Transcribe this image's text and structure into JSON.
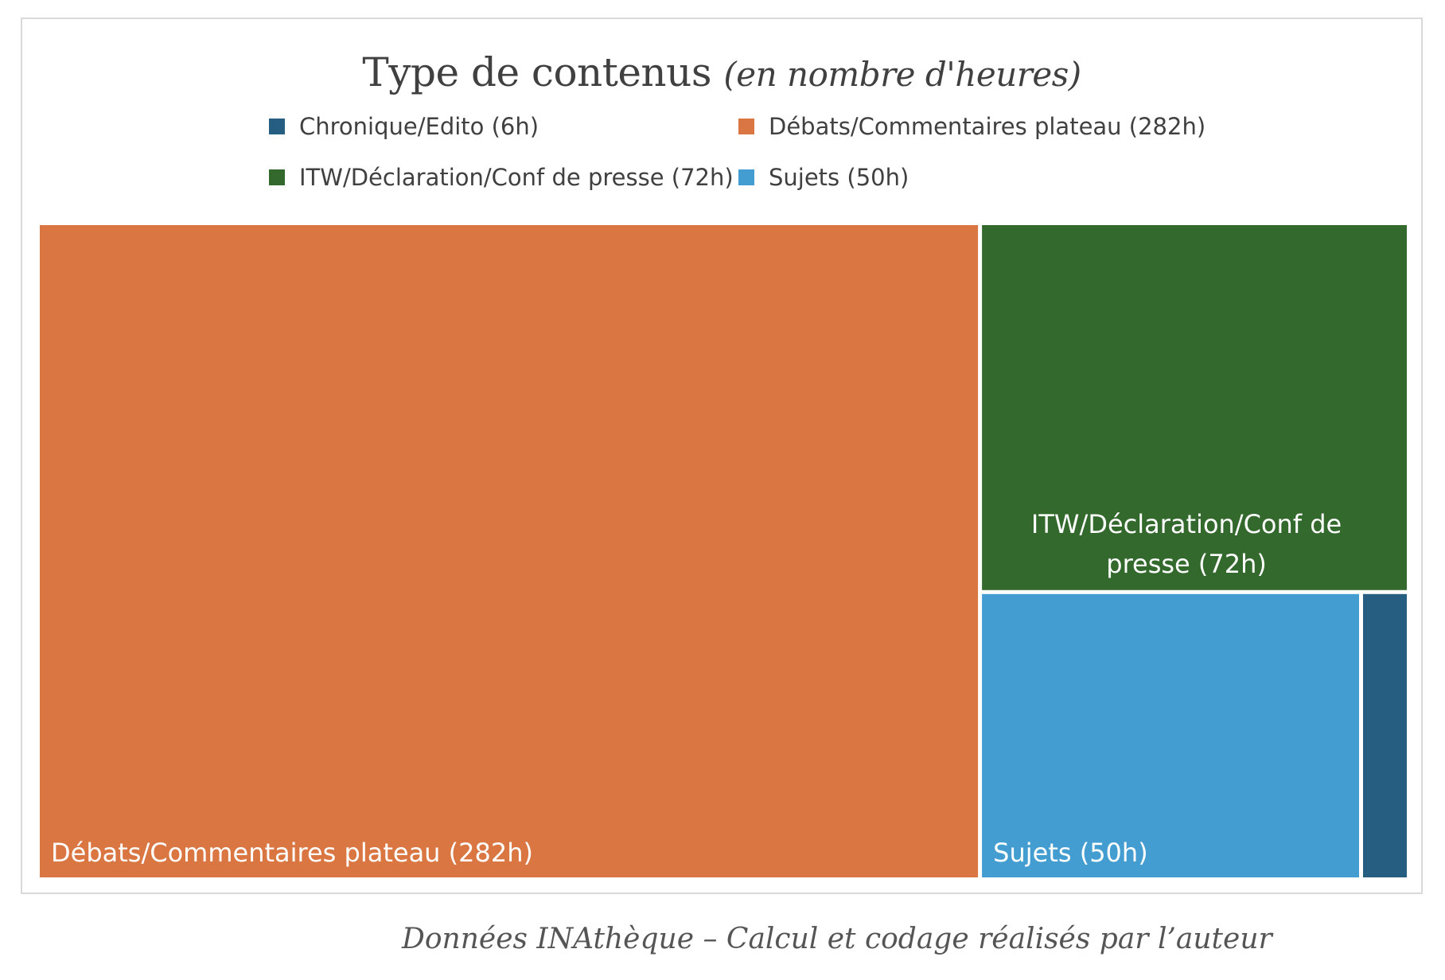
{
  "caption": "Données INAthèque – Calcul et codage réalisés par l’auteur",
  "chart_data": {
    "type": "treemap",
    "title": "Type de contenus",
    "subtitle": "(en nombre d'heures)",
    "legend_position": "top",
    "series": [
      {
        "name": "Chronique/Edito (6h)",
        "value": 6,
        "color": "#255e81",
        "label": ""
      },
      {
        "name": "Débats/Commentaires plateau (282h)",
        "value": 282,
        "color": "#d97642",
        "label": "Débats/Commentaires plateau (282h)"
      },
      {
        "name": "ITW/Déclaration/Conf de presse (72h)",
        "value": 72,
        "color": "#33692d",
        "label": "ITW/Déclaration/Conf de presse (72h)",
        "label_lines": [
          "ITW/Déclaration/Conf de",
          "presse (72h)"
        ]
      },
      {
        "name": "Sujets (50h)",
        "value": 50,
        "color": "#439dd1",
        "label": "Sujets (50h)"
      }
    ],
    "legend_order": [
      0,
      1,
      2,
      3
    ]
  }
}
